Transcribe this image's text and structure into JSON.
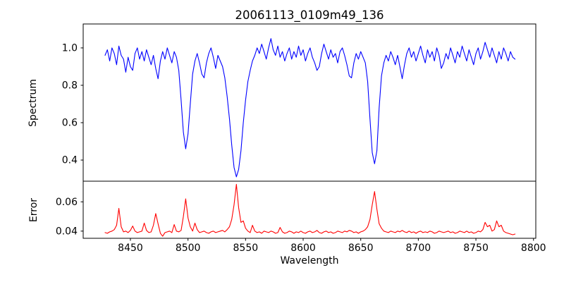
{
  "figure": {
    "background": "#ffffff",
    "title": "20061113_0109m49_136"
  },
  "chart_data": [
    {
      "type": "line",
      "name": "spectrum-panel",
      "title": "20061113_0109m49_136",
      "ylabel": "Spectrum",
      "legend": "none",
      "grid": false,
      "line_color": "#0000ff",
      "xlim": [
        8409,
        8802
      ],
      "ylim": [
        0.287,
        1.128
      ],
      "yticks": [
        0.4,
        0.6,
        0.8,
        1.0
      ],
      "ytick_labels": [
        "0.4",
        "0.6",
        "0.8",
        "1.0"
      ],
      "xticks": [
        8450,
        8500,
        8550,
        8600,
        8650,
        8700,
        8750,
        8800
      ],
      "xtick_labels": [],
      "show_xtick_marks": false,
      "absorption_lines": [
        {
          "wavelength": 8498,
          "depth": 0.46
        },
        {
          "wavelength": 8542,
          "depth": 0.31
        },
        {
          "wavelength": 8662,
          "depth": 0.38
        }
      ],
      "x_start": 8428,
      "x_step": 2,
      "values": [
        0.96,
        0.99,
        0.93,
        1.0,
        0.97,
        0.91,
        1.01,
        0.96,
        0.94,
        0.87,
        0.95,
        0.9,
        0.88,
        0.97,
        1.0,
        0.94,
        0.98,
        0.93,
        0.99,
        0.95,
        0.91,
        0.96,
        0.89,
        0.835,
        0.93,
        0.98,
        0.94,
        1.0,
        0.96,
        0.92,
        0.98,
        0.95,
        0.88,
        0.72,
        0.55,
        0.46,
        0.54,
        0.7,
        0.86,
        0.93,
        0.97,
        0.92,
        0.86,
        0.84,
        0.92,
        0.97,
        1.0,
        0.95,
        0.89,
        0.96,
        0.93,
        0.9,
        0.84,
        0.74,
        0.62,
        0.48,
        0.36,
        0.31,
        0.35,
        0.45,
        0.6,
        0.72,
        0.82,
        0.88,
        0.93,
        0.96,
        1.0,
        0.97,
        1.02,
        0.98,
        0.94,
        1.0,
        1.05,
        0.99,
        0.96,
        1.01,
        0.95,
        0.98,
        0.93,
        0.97,
        1.0,
        0.94,
        0.98,
        0.95,
        1.01,
        0.96,
        0.99,
        0.93,
        0.97,
        1.0,
        0.95,
        0.92,
        0.88,
        0.9,
        0.97,
        1.02,
        0.98,
        0.94,
        0.99,
        0.95,
        0.97,
        0.92,
        0.98,
        1.0,
        0.96,
        0.91,
        0.85,
        0.84,
        0.92,
        0.97,
        0.94,
        0.98,
        0.95,
        0.92,
        0.82,
        0.62,
        0.44,
        0.38,
        0.45,
        0.68,
        0.85,
        0.92,
        0.96,
        0.93,
        0.98,
        0.95,
        0.91,
        0.96,
        0.9,
        0.835,
        0.91,
        0.97,
        1.0,
        0.95,
        0.98,
        0.93,
        0.97,
        1.01,
        0.96,
        0.92,
        0.99,
        0.95,
        0.98,
        0.93,
        1.0,
        0.96,
        0.89,
        0.92,
        0.97,
        0.94,
        1.0,
        0.96,
        0.92,
        0.98,
        0.95,
        1.01,
        0.97,
        0.93,
        0.99,
        0.95,
        0.91,
        0.97,
        1.0,
        0.94,
        0.98,
        1.03,
        0.99,
        0.95,
        1.0,
        0.96,
        0.92,
        0.98,
        0.94,
        1.0,
        0.97,
        0.93,
        0.98,
        0.95,
        0.94
      ]
    },
    {
      "type": "line",
      "name": "error-panel",
      "xlabel": "Wavelength",
      "ylabel": "Error",
      "legend": "none",
      "grid": false,
      "line_color": "#ff0000",
      "xlim": [
        8409,
        8802
      ],
      "ylim": [
        0.0351,
        0.0741
      ],
      "yticks": [
        0.04,
        0.06
      ],
      "ytick_labels": [
        "0.04",
        "0.06"
      ],
      "xticks": [
        8450,
        8500,
        8550,
        8600,
        8650,
        8700,
        8750,
        8800
      ],
      "xtick_labels": [
        "8450",
        "8500",
        "8550",
        "8600",
        "8650",
        "8700",
        "8750",
        "8800"
      ],
      "show_xtick_marks": true,
      "error_peaks": [
        {
          "wavelength": 8440,
          "value": 0.0555
        },
        {
          "wavelength": 8472,
          "value": 0.052
        },
        {
          "wavelength": 8498,
          "value": 0.062
        },
        {
          "wavelength": 8542,
          "value": 0.072
        },
        {
          "wavelength": 8662,
          "value": 0.067
        }
      ],
      "x_start": 8428,
      "x_step": 2,
      "values": [
        0.039,
        0.0385,
        0.0395,
        0.04,
        0.041,
        0.044,
        0.0555,
        0.043,
        0.0395,
        0.04,
        0.039,
        0.0405,
        0.0435,
        0.04,
        0.039,
        0.0395,
        0.04,
        0.0455,
        0.0405,
        0.039,
        0.0395,
        0.044,
        0.052,
        0.045,
        0.0385,
        0.0365,
        0.039,
        0.0395,
        0.04,
        0.039,
        0.0445,
        0.04,
        0.0395,
        0.0405,
        0.05,
        0.062,
        0.049,
        0.043,
        0.04,
        0.0455,
        0.041,
        0.039,
        0.0395,
        0.04,
        0.039,
        0.0385,
        0.0395,
        0.04,
        0.039,
        0.0395,
        0.04,
        0.0405,
        0.0395,
        0.041,
        0.043,
        0.048,
        0.058,
        0.072,
        0.056,
        0.046,
        0.047,
        0.042,
        0.04,
        0.039,
        0.044,
        0.04,
        0.039,
        0.0395,
        0.0385,
        0.04,
        0.0395,
        0.039,
        0.04,
        0.0395,
        0.0385,
        0.039,
        0.0425,
        0.0395,
        0.0385,
        0.039,
        0.04,
        0.0395,
        0.0385,
        0.0395,
        0.039,
        0.04,
        0.039,
        0.0385,
        0.0395,
        0.04,
        0.039,
        0.0395,
        0.0405,
        0.039,
        0.0385,
        0.0395,
        0.04,
        0.039,
        0.0395,
        0.0385,
        0.039,
        0.04,
        0.0395,
        0.039,
        0.04,
        0.0395,
        0.0405,
        0.04,
        0.039,
        0.0395,
        0.0385,
        0.0395,
        0.04,
        0.041,
        0.043,
        0.048,
        0.058,
        0.067,
        0.055,
        0.045,
        0.042,
        0.04,
        0.0395,
        0.039,
        0.04,
        0.0395,
        0.039,
        0.04,
        0.0395,
        0.0405,
        0.0395,
        0.039,
        0.04,
        0.039,
        0.0395,
        0.0385,
        0.0395,
        0.04,
        0.039,
        0.0395,
        0.039,
        0.04,
        0.0395,
        0.0385,
        0.039,
        0.04,
        0.0395,
        0.039,
        0.0395,
        0.04,
        0.039,
        0.0395,
        0.0385,
        0.039,
        0.04,
        0.0395,
        0.039,
        0.04,
        0.039,
        0.0395,
        0.0385,
        0.039,
        0.04,
        0.0395,
        0.041,
        0.046,
        0.043,
        0.044,
        0.04,
        0.041,
        0.047,
        0.043,
        0.044,
        0.04,
        0.039,
        0.0385,
        0.038,
        0.0375,
        0.038
      ]
    }
  ]
}
